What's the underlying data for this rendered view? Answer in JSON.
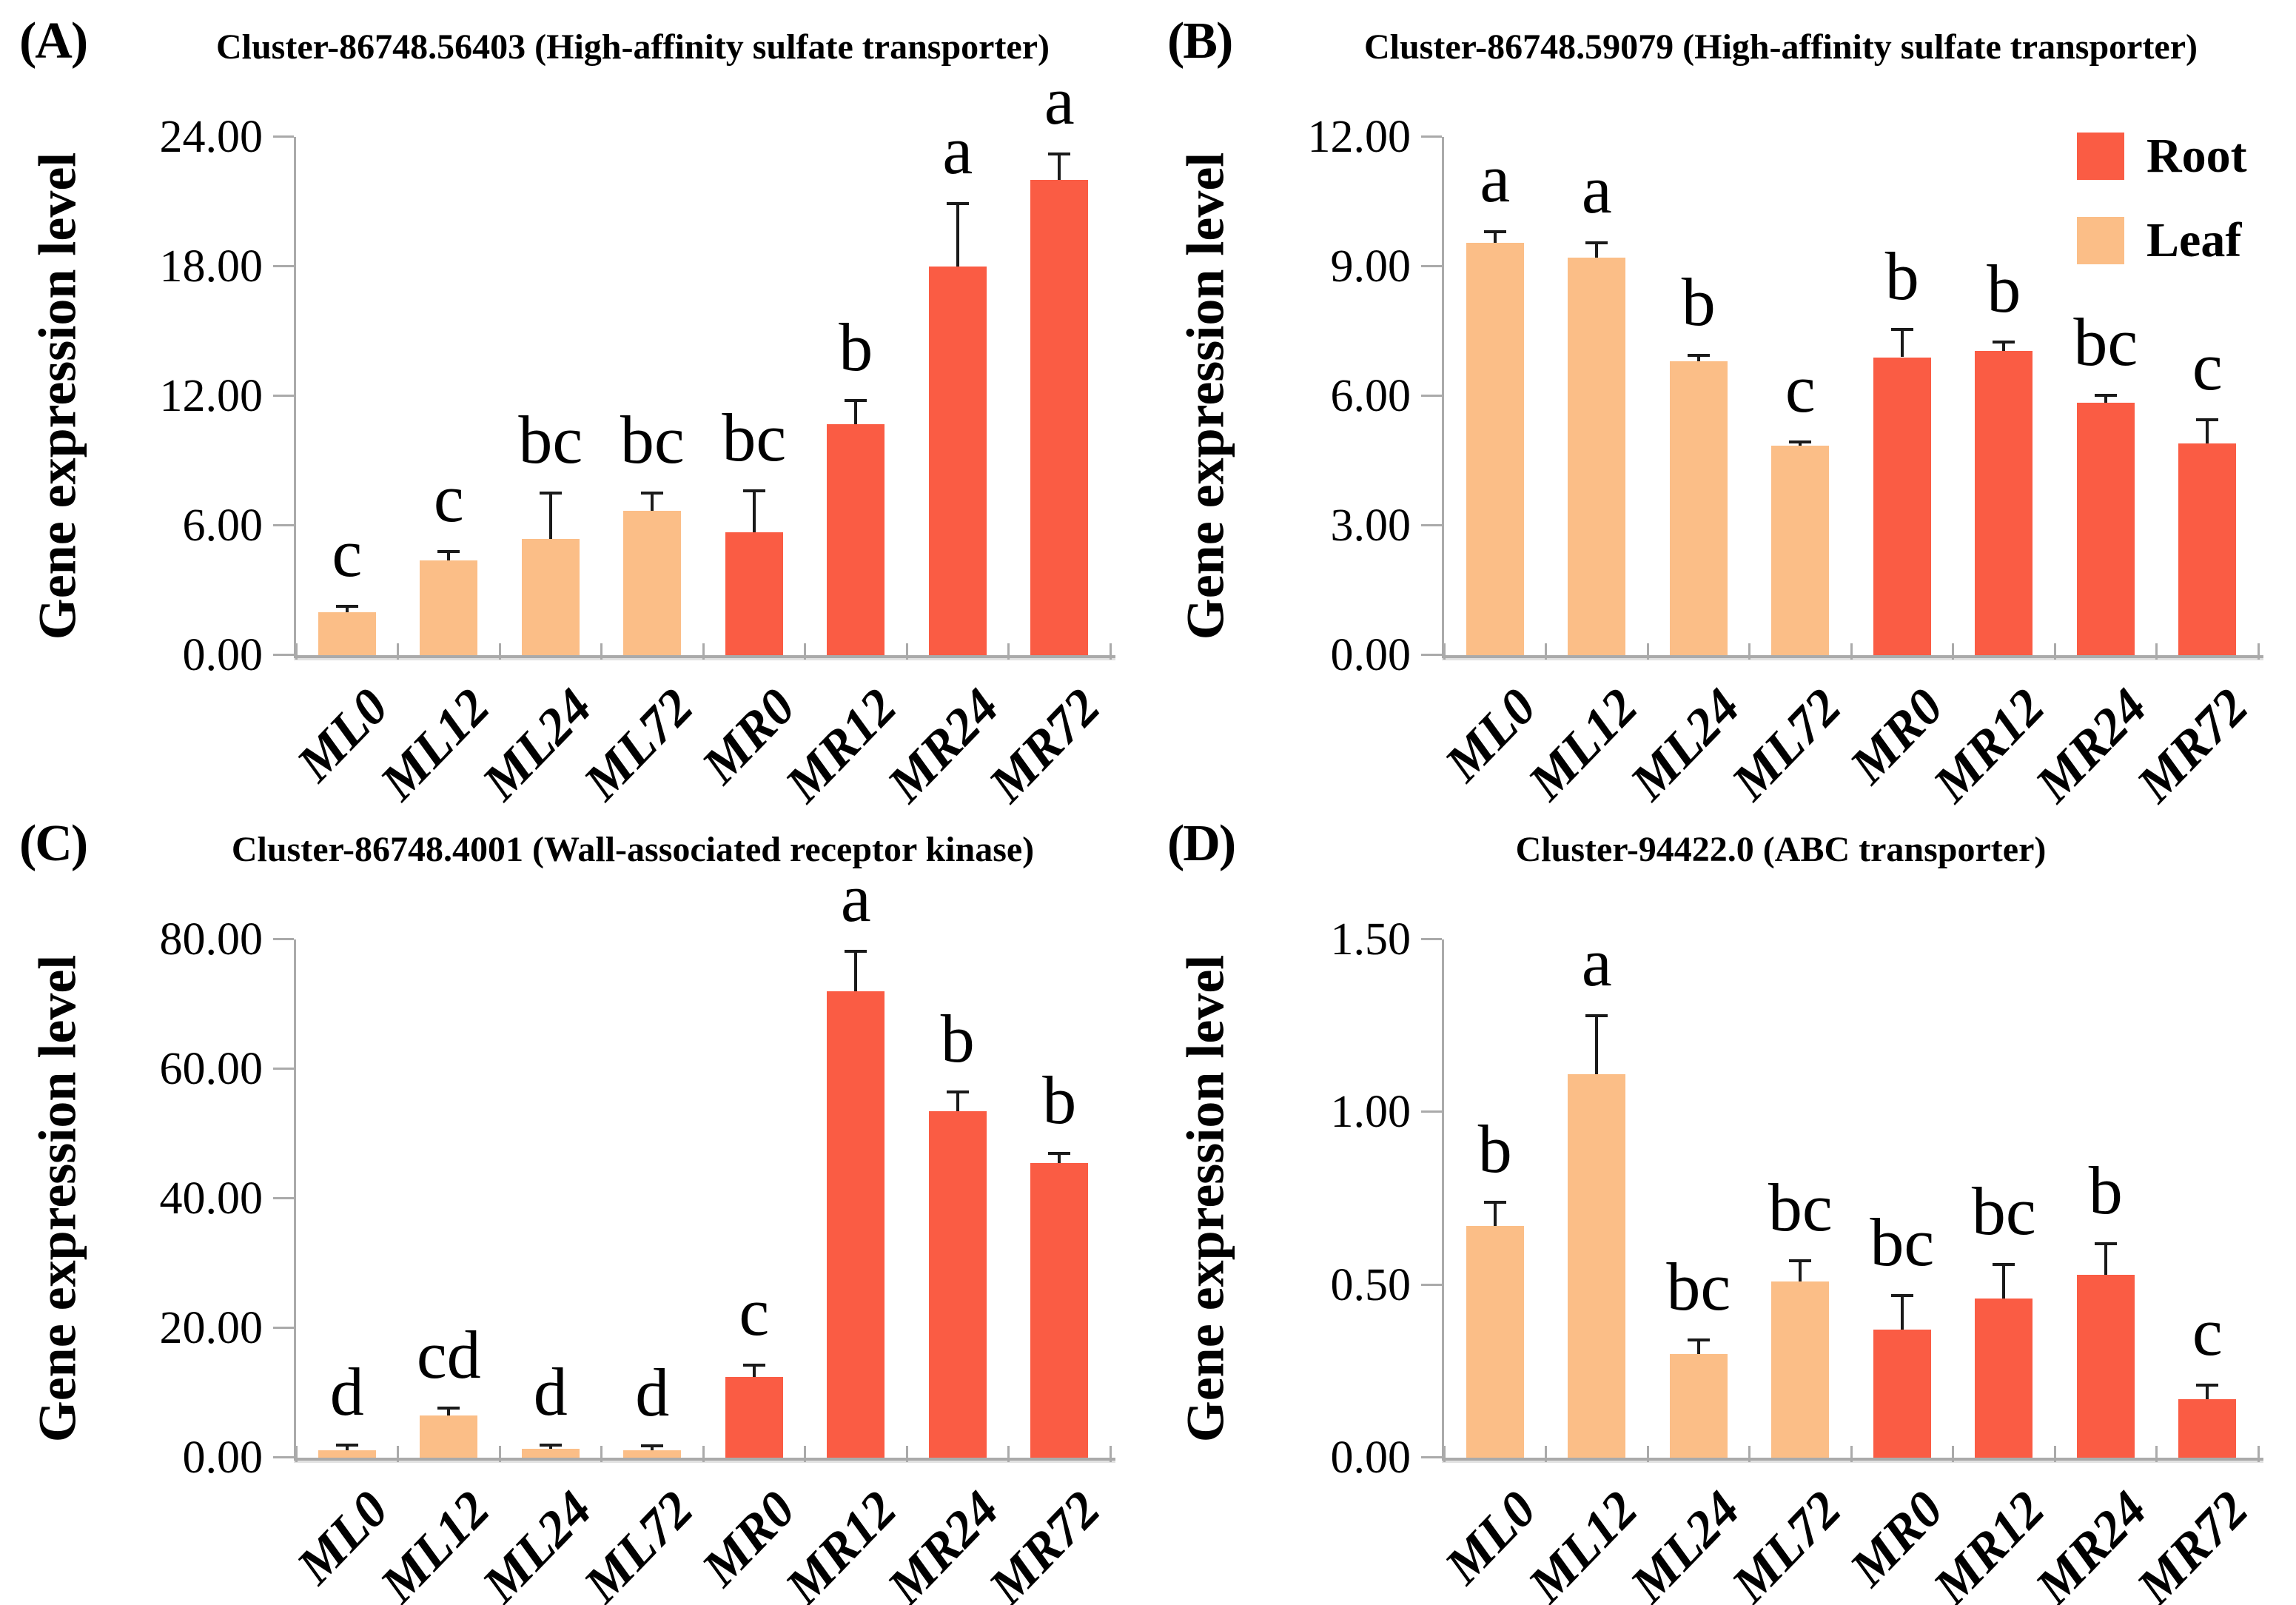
{
  "figure": {
    "background": "#ffffff"
  },
  "colors": {
    "root": "#FA5C44",
    "leaf": "#FBBE87",
    "axis": "#AAAAAA",
    "error_bar": "#1A1A1A",
    "text": "#000000"
  },
  "legend": {
    "location": "panel B top-right",
    "items": [
      {
        "label": "Root",
        "color_key": "root"
      },
      {
        "label": "Leaf",
        "color_key": "leaf"
      }
    ]
  },
  "chart_data": [
    {
      "panel": "(A)",
      "title": "Cluster-86748.56403 (High-affinity sulfate transporter)",
      "type": "bar",
      "ylabel": "Gene expression level",
      "categories": [
        "ML0",
        "ML12",
        "ML24",
        "ML72",
        "MR0",
        "MR12",
        "MR24",
        "MR72"
      ],
      "groups": [
        "leaf",
        "leaf",
        "leaf",
        "leaf",
        "root",
        "root",
        "root",
        "root"
      ],
      "values": [
        2.0,
        4.4,
        5.4,
        6.7,
        5.7,
        10.7,
        18.0,
        22.0
      ],
      "errors": [
        0.25,
        0.4,
        2.1,
        0.8,
        1.9,
        1.1,
        2.9,
        1.2
      ],
      "sig_letters": [
        "c",
        "c",
        "bc",
        "bc",
        "bc",
        "b",
        "a",
        "a"
      ],
      "ylim": [
        0,
        24
      ],
      "yticks": [
        24,
        18,
        12,
        6,
        0
      ],
      "grid": false
    },
    {
      "panel": "(B)",
      "title": "Cluster-86748.59079 (High-affinity sulfate transporter)",
      "type": "bar",
      "ylabel": "Gene expression level",
      "categories": [
        "ML0",
        "ML12",
        "ML24",
        "ML72",
        "MR0",
        "MR12",
        "MR24",
        "MR72"
      ],
      "groups": [
        "leaf",
        "leaf",
        "leaf",
        "leaf",
        "root",
        "root",
        "root",
        "root"
      ],
      "values": [
        9.55,
        9.2,
        6.8,
        4.85,
        6.9,
        7.05,
        5.85,
        4.9
      ],
      "errors": [
        0.25,
        0.35,
        0.15,
        0.08,
        0.65,
        0.2,
        0.17,
        0.55
      ],
      "sig_letters": [
        "a",
        "a",
        "b",
        "c",
        "b",
        "b",
        "bc",
        "c"
      ],
      "ylim": [
        0,
        12
      ],
      "yticks": [
        12,
        9,
        6,
        3,
        0
      ],
      "grid": false,
      "legend_position": "top-right"
    },
    {
      "panel": "(C)",
      "title": "Cluster-86748.4001 (Wall-associated receptor kinase)",
      "type": "bar",
      "ylabel": "Gene expression level",
      "categories": [
        "ML0",
        "ML12",
        "ML24",
        "ML72",
        "MR0",
        "MR12",
        "MR24",
        "MR72"
      ],
      "groups": [
        "leaf",
        "leaf",
        "leaf",
        "leaf",
        "root",
        "root",
        "root",
        "root"
      ],
      "values": [
        1.2,
        6.5,
        1.4,
        1.2,
        12.5,
        72.0,
        53.5,
        45.5
      ],
      "errors": [
        0.7,
        1.2,
        0.5,
        0.6,
        1.8,
        6.2,
        3.0,
        1.5
      ],
      "sig_letters": [
        "d",
        "cd",
        "d",
        "d",
        "c",
        "a",
        "b",
        "b"
      ],
      "ylim": [
        0,
        80
      ],
      "yticks": [
        80,
        60,
        40,
        20,
        0
      ],
      "grid": false
    },
    {
      "panel": "(D)",
      "title": "Cluster-94422.0 (ABC transporter)",
      "type": "bar",
      "ylabel": "Gene expression level",
      "categories": [
        "ML0",
        "ML12",
        "ML24",
        "ML72",
        "MR0",
        "MR12",
        "MR24",
        "MR72"
      ],
      "groups": [
        "leaf",
        "leaf",
        "leaf",
        "leaf",
        "root",
        "root",
        "root",
        "root"
      ],
      "values": [
        0.67,
        1.11,
        0.3,
        0.51,
        0.37,
        0.46,
        0.53,
        0.17
      ],
      "errors": [
        0.07,
        0.17,
        0.04,
        0.06,
        0.1,
        0.1,
        0.09,
        0.04
      ],
      "sig_letters": [
        "b",
        "a",
        "bc",
        "bc",
        "bc",
        "bc",
        "b",
        "c"
      ],
      "ylim": [
        0,
        1.5
      ],
      "yticks": [
        1.5,
        1.0,
        0.5,
        0
      ],
      "grid": false
    }
  ]
}
